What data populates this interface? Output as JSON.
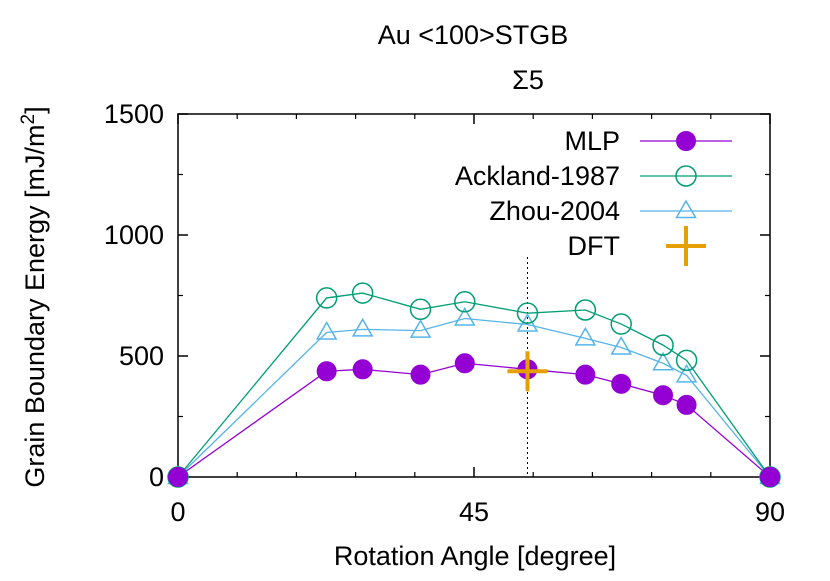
{
  "chart_data": {
    "type": "line",
    "title": "Au <100>STGB",
    "subtitle": "Σ5",
    "xlabel": "Rotation Angle [degree]",
    "ylabel_main": "Grain Boundary Energy [mJ/m",
    "ylabel_sup": "2",
    "ylabel_end": "]",
    "xlim": [
      0,
      90
    ],
    "ylim": [
      0,
      1500
    ],
    "xticks": [
      0,
      45,
      90
    ],
    "yticks": [
      0,
      500,
      1000,
      1500
    ],
    "grid": false,
    "legend_position": "top-right",
    "reference_line_x": 53.13,
    "series": [
      {
        "name": "MLP",
        "color": "#9400d3",
        "marker": "filled-circle",
        "x": [
          0,
          22.6,
          28.07,
          36.87,
          43.6,
          53.13,
          61.93,
          67.38,
          73.74,
          77.32,
          90
        ],
        "y": [
          0,
          437,
          445,
          423,
          470,
          445,
          423,
          385,
          338,
          298,
          0
        ]
      },
      {
        "name": "Ackland-1987",
        "color": "#009e73",
        "marker": "open-circle",
        "x": [
          0,
          22.6,
          28.07,
          36.87,
          43.6,
          53.13,
          61.93,
          67.38,
          73.74,
          77.32,
          90
        ],
        "y": [
          0,
          740,
          760,
          693,
          724,
          677,
          690,
          632,
          545,
          482,
          0
        ]
      },
      {
        "name": "Zhou-2004",
        "color": "#56b4e9",
        "marker": "open-triangle",
        "x": [
          0,
          22.6,
          28.07,
          36.87,
          43.6,
          53.13,
          61.93,
          67.38,
          73.74,
          77.32,
          90
        ],
        "y": [
          0,
          597,
          610,
          605,
          655,
          630,
          573,
          535,
          470,
          420,
          0
        ]
      },
      {
        "name": "DFT",
        "color": "#e69f00",
        "marker": "plus",
        "x": [
          53.13
        ],
        "y": [
          437
        ]
      }
    ]
  }
}
